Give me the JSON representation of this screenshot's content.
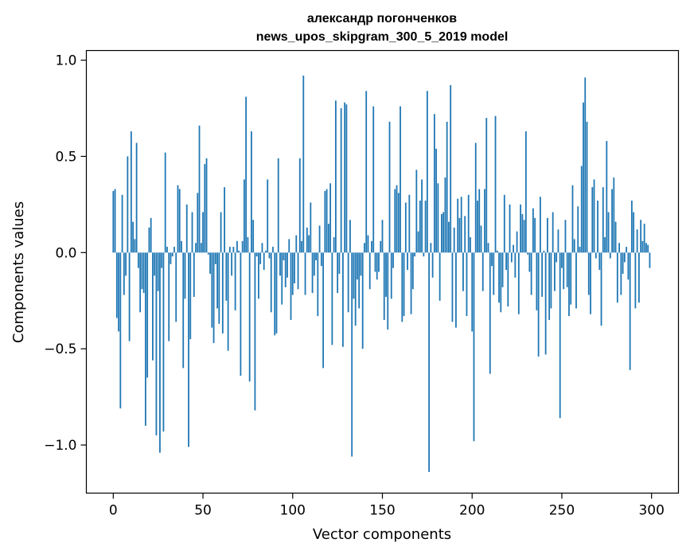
{
  "chart_data": {
    "type": "bar",
    "title": "александр погонченков",
    "subtitle": "news_upos_skipgram_300_5_2019 model",
    "xlabel": "Vector components",
    "ylabel": "Components values",
    "xlim": [
      -15,
      315
    ],
    "ylim": [
      -1.25,
      1.05
    ],
    "xticks": [
      0,
      50,
      100,
      150,
      200,
      250,
      300
    ],
    "xtick_labels": [
      "0",
      "50",
      "100",
      "150",
      "200",
      "250",
      "300"
    ],
    "yticks": [
      1.0,
      0.5,
      0.0,
      -0.5,
      -1.0
    ],
    "ytick_labels": [
      "1.0",
      "0.5",
      "0.0",
      "−0.5",
      "−1.0"
    ],
    "bar_color": "#1f77b4",
    "grid": false,
    "legend": "none",
    "values": [
      0.32,
      0.33,
      -0.34,
      -0.41,
      -0.81,
      0.3,
      -0.22,
      -0.12,
      0.5,
      -0.46,
      0.63,
      0.16,
      0.07,
      0.57,
      -0.08,
      -0.31,
      -0.19,
      -0.21,
      -0.9,
      -0.65,
      0.13,
      0.18,
      -0.56,
      -0.12,
      -0.95,
      -0.2,
      -1.04,
      -0.08,
      -0.93,
      0.52,
      0.03,
      -0.46,
      -0.06,
      -0.02,
      0.03,
      -0.36,
      0.35,
      0.33,
      0.06,
      -0.6,
      -0.24,
      0.25,
      -1.01,
      -0.45,
      0.21,
      -0.23,
      0.05,
      0.31,
      0.66,
      0.05,
      0.21,
      0.46,
      0.49,
      -0.01,
      -0.11,
      -0.39,
      -0.47,
      -0.06,
      -0.29,
      -0.37,
      0.21,
      -0.42,
      0.34,
      -0.25,
      -0.51,
      0.03,
      -0.12,
      0.03,
      -0.3,
      0.06,
      0.01,
      -0.64,
      0.06,
      0.38,
      0.81,
      0.08,
      -0.67,
      0.63,
      0.17,
      -0.82,
      -0.02,
      -0.24,
      -0.06,
      0.05,
      -0.09,
      0.01,
      0.38,
      -0.03,
      -0.31,
      0.03,
      -0.43,
      -0.42,
      0.49,
      -0.12,
      -0.27,
      -0.04,
      -0.18,
      -0.13,
      0.07,
      -0.35,
      -0.22,
      -0.16,
      0.09,
      -0.19,
      0.49,
      0.06,
      0.92,
      -0.22,
      0.13,
      0.09,
      0.26,
      -0.21,
      -0.12,
      -0.04,
      -0.33,
      0.14,
      -0.07,
      -0.6,
      0.32,
      0.33,
      0.15,
      0.36,
      -0.48,
      0.08,
      0.79,
      -0.21,
      -0.11,
      0.75,
      -0.49,
      0.78,
      0.77,
      -0.31,
      0.17,
      -1.06,
      -0.24,
      -0.38,
      -0.14,
      -0.29,
      -0.12,
      -0.5,
      0.05,
      0.84,
      0.09,
      -0.19,
      0.06,
      0.76,
      -0.1,
      -0.14,
      -0.1,
      0.06,
      0.17,
      -0.35,
      -0.23,
      -0.4,
      0.68,
      -0.24,
      -0.08,
      0.33,
      0.35,
      0.31,
      0.76,
      -0.36,
      -0.33,
      0.26,
      -0.09,
      0.3,
      -0.32,
      -0.19,
      -0.02,
      0.43,
      0.11,
      0.27,
      0.38,
      -0.02,
      0.27,
      0.84,
      -1.14,
      0.05,
      -0.13,
      0.72,
      0.54,
      0.36,
      -0.25,
      0.2,
      0.21,
      0.39,
      0.68,
      0.16,
      0.87,
      -0.36,
      0.13,
      -0.39,
      0.28,
      0.18,
      0.29,
      -0.2,
      0.19,
      -0.33,
      0.3,
      0.08,
      -0.41,
      -0.98,
      0.57,
      0.27,
      0.33,
      0.14,
      -0.2,
      0.33,
      0.7,
      0.05,
      -0.63,
      -0.07,
      -0.22,
      0.71,
      0.01,
      -0.26,
      -0.31,
      -0.18,
      0.3,
      -0.09,
      -0.28,
      0.25,
      -0.05,
      0.04,
      -0.13,
      0.11,
      -0.32,
      0.25,
      0.2,
      0.17,
      0.63,
      -0.01,
      -0.1,
      -0.22,
      0.23,
      0.18,
      -0.3,
      -0.54,
      0.29,
      -0.23,
      0.01,
      -0.53,
      0.18,
      -0.35,
      -0.29,
      0.21,
      -0.2,
      -0.05,
      0.12,
      -0.86,
      -0.08,
      -0.19,
      0.17,
      -0.18,
      -0.33,
      -0.27,
      0.35,
      0.07,
      -0.29,
      0.24,
      0.03,
      0.45,
      0.78,
      0.91,
      0.68,
      -0.22,
      -0.32,
      0.34,
      0.38,
      -0.03,
      0.27,
      -0.09,
      -0.38,
      0.34,
      0.08,
      0.58,
      0.21,
      -0.03,
      0.33,
      0.39,
      0.16,
      -0.26,
      0.05,
      -0.22,
      -0.11,
      -0.05,
      0.03,
      -0.14,
      -0.61,
      0.27,
      0.21,
      -0.29,
      0.12,
      -0.26,
      0.17,
      0.06,
      0.15,
      0.05,
      0.04,
      -0.08
    ]
  }
}
